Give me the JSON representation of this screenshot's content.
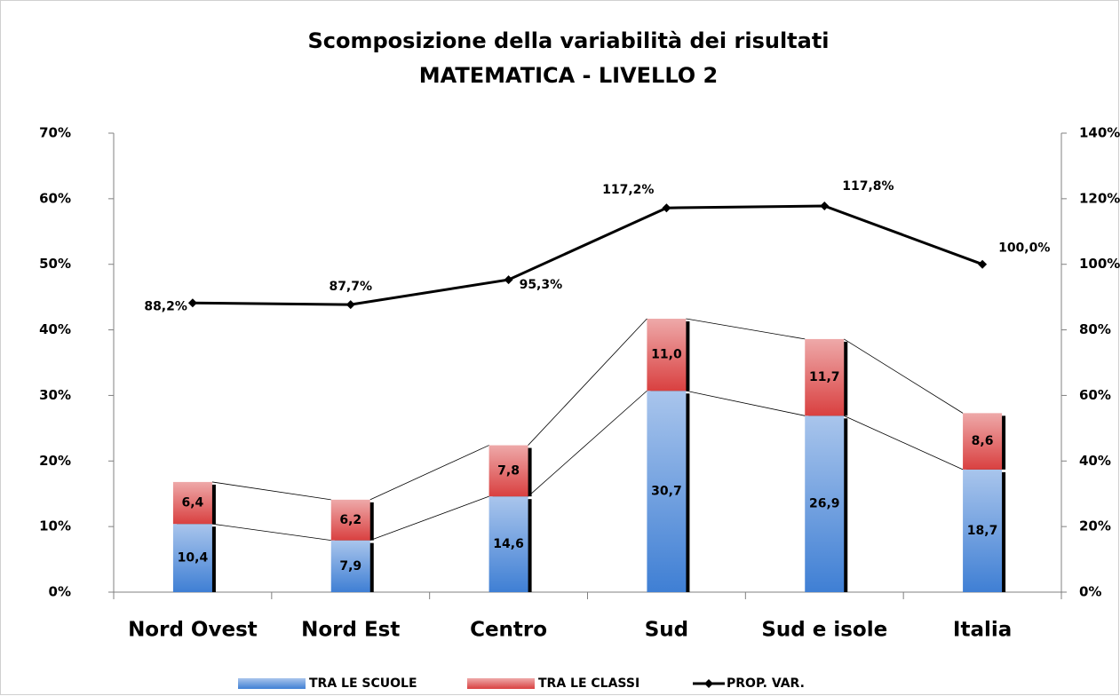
{
  "chart_data": {
    "type": "bar",
    "title": "Scomposizione della variabilità dei risultati",
    "subtitle": "MATEMATICA - LIVELLO 2",
    "categories": [
      "Nord Ovest",
      "Nord Est",
      "Centro",
      "Sud",
      "Sud e isole",
      "Italia"
    ],
    "series": [
      {
        "name": "TRA LE SCUOLE",
        "type": "bar",
        "color": "#3f7fd4",
        "values": [
          10.4,
          7.9,
          14.6,
          30.7,
          26.9,
          18.7
        ],
        "value_labels": [
          "10,4",
          "7,9",
          "14,6",
          "30,7",
          "26,9",
          "18,7"
        ]
      },
      {
        "name": "TRA LE CLASSI",
        "type": "bar",
        "color": "#d94040",
        "values": [
          6.4,
          6.2,
          7.8,
          11.0,
          11.7,
          8.6
        ],
        "value_labels": [
          "6,4",
          "6,2",
          "7,8",
          "11,0",
          "11,7",
          "8,6"
        ]
      },
      {
        "name": "PROP. VAR.",
        "type": "line",
        "axis": "y2",
        "color": "#000000",
        "values": [
          88.2,
          87.7,
          95.3,
          117.2,
          117.8,
          100.0
        ],
        "value_labels": [
          "88,2%",
          "87,7%",
          "95,3%",
          "117,2%",
          "117,8%",
          "100,0%"
        ]
      }
    ],
    "ylim": [
      0,
      70
    ],
    "yticks": [
      {
        "value": 0,
        "label": "0%"
      },
      {
        "value": 10,
        "label": "10%"
      },
      {
        "value": 20,
        "label": "20%"
      },
      {
        "value": 30,
        "label": "30%"
      },
      {
        "value": 40,
        "label": "40%"
      },
      {
        "value": 50,
        "label": "50%"
      },
      {
        "value": 60,
        "label": "60%"
      },
      {
        "value": 70,
        "label": "70%"
      }
    ],
    "y2lim": [
      0,
      140
    ],
    "y2ticks": [
      {
        "value": 0,
        "label": "0%"
      },
      {
        "value": 20,
        "label": "20%"
      },
      {
        "value": 40,
        "label": "40%"
      },
      {
        "value": 60,
        "label": "60%"
      },
      {
        "value": 80,
        "label": "80%"
      },
      {
        "value": 100,
        "label": "100%"
      },
      {
        "value": 120,
        "label": "120%"
      },
      {
        "value": 140,
        "label": "140%"
      }
    ],
    "stacked": true,
    "legend": "bottom"
  }
}
